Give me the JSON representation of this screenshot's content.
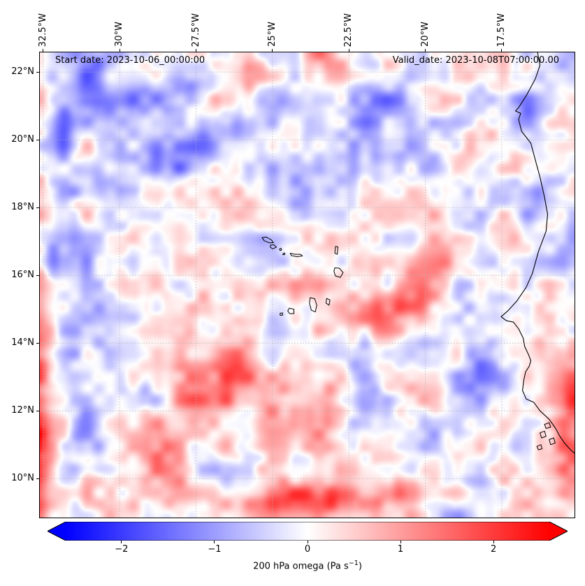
{
  "figure": {
    "start_date_label": "Start date: 2023-10-06_00:00:00",
    "valid_date_label": "Valid_date: 2023-10-08T07:00:00.00"
  },
  "chart_data": {
    "type": "heatmap",
    "variable": "200 hPa omega",
    "units": "Pa s-1",
    "lon_range": [
      -32.61,
      -15.12
    ],
    "lat_range": [
      8.85,
      22.58
    ],
    "x_ticks": [
      {
        "label": "32.5°W",
        "lon": -32.5
      },
      {
        "label": "30°W",
        "lon": -30
      },
      {
        "label": "27.5°W",
        "lon": -27.5
      },
      {
        "label": "25°W",
        "lon": -25
      },
      {
        "label": "22.5°W",
        "lon": -22.5
      },
      {
        "label": "20°W",
        "lon": -20
      },
      {
        "label": "17.5°W",
        "lon": -17.5
      }
    ],
    "y_ticks": [
      {
        "label": "22°N",
        "lat": 22
      },
      {
        "label": "20°N",
        "lat": 20
      },
      {
        "label": "18°N",
        "lat": 18
      },
      {
        "label": "16°N",
        "lat": 16
      },
      {
        "label": "14°N",
        "lat": 14
      },
      {
        "label": "12°N",
        "lat": 12
      },
      {
        "label": "10°N",
        "lat": 10
      }
    ],
    "grid": true,
    "grid_style": {
      "color": "#b5b5b5",
      "dash": "1.5 2.5"
    },
    "colormap": {
      "name": "bwr",
      "stops": [
        "#0000ff",
        "#ffffff",
        "#ff0000"
      ]
    },
    "colorbar": {
      "vmin": -2.6,
      "vmax": 2.6,
      "ticks": [
        {
          "v": -2,
          "label": "−2"
        },
        {
          "v": -1,
          "label": "−1"
        },
        {
          "v": 0,
          "label": "0"
        },
        {
          "v": 1,
          "label": "1"
        },
        {
          "v": 2,
          "label": "2"
        }
      ],
      "label_prefix": "200 hPa omega (Pa s",
      "label_sup": "−1",
      "label_suffix": ")",
      "extend": "both",
      "orientation": "horizontal"
    },
    "field": {
      "seed": 11,
      "octaves": [
        [
          5,
          0.4
        ],
        [
          11,
          0.45
        ],
        [
          23,
          0.5
        ],
        [
          46,
          0.35
        ]
      ],
      "gain": 1.25,
      "features": [
        [
          -32.8,
          16.0,
          1.3,
          0.35,
          6.5,
          0
        ],
        [
          -32.85,
          10.5,
          1.0,
          0.3,
          2.0,
          0
        ],
        [
          -31.3,
          12.0,
          -0.8,
          0.5,
          2.2,
          0
        ],
        [
          -29.5,
          21.2,
          -1.0,
          2.8,
          0.45,
          20
        ],
        [
          -28.0,
          19.6,
          -0.9,
          2.6,
          0.4,
          20
        ],
        [
          -31.5,
          21.9,
          -0.7,
          1.2,
          0.5,
          20
        ],
        [
          -31.2,
          18.1,
          0.9,
          0.55,
          0.4,
          0
        ],
        [
          -26.5,
          22.2,
          0.7,
          1.0,
          0.35,
          0
        ],
        [
          -21.5,
          20.8,
          -0.7,
          1.2,
          0.8,
          0
        ],
        [
          -19.2,
          18.6,
          -0.9,
          0.9,
          0.7,
          0
        ],
        [
          -16.3,
          19.6,
          -0.8,
          0.55,
          1.6,
          0
        ],
        [
          -19.0,
          19.2,
          0.8,
          1.2,
          0.35,
          45
        ],
        [
          -20.6,
          15.3,
          1.2,
          1.0,
          0.5,
          10
        ],
        [
          -19.3,
          16.4,
          1.0,
          0.7,
          0.4,
          0
        ],
        [
          -21.9,
          14.6,
          0.9,
          0.6,
          0.4,
          0
        ],
        [
          -27.6,
          12.4,
          1.1,
          0.5,
          0.8,
          0
        ],
        [
          -26.3,
          13.4,
          1.0,
          0.45,
          0.6,
          0
        ],
        [
          -25.0,
          11.6,
          0.9,
          0.5,
          0.55,
          0
        ],
        [
          -28.6,
          10.8,
          0.8,
          0.45,
          0.7,
          0
        ],
        [
          -23.3,
          12.2,
          0.85,
          0.45,
          0.5,
          0
        ],
        [
          -24.0,
          9.35,
          1.2,
          2.2,
          0.3,
          0
        ],
        [
          -20.0,
          9.6,
          0.7,
          1.0,
          0.3,
          0
        ],
        [
          -15.3,
          11.0,
          0.9,
          0.4,
          2.0,
          0
        ],
        [
          -15.5,
          15.5,
          -0.6,
          0.5,
          1.2,
          0
        ],
        [
          -22.0,
          12.0,
          -0.8,
          0.5,
          0.9,
          0
        ],
        [
          -18.0,
          13.0,
          -0.7,
          0.8,
          0.6,
          0
        ],
        [
          -24.6,
          16.6,
          -0.9,
          0.8,
          0.5,
          0
        ],
        [
          -30.0,
          14.8,
          -0.6,
          1.2,
          0.8,
          0
        ]
      ]
    },
    "coastline": [
      [
        -16.33,
        22.58
      ],
      [
        -16.25,
        22.2
      ],
      [
        -16.4,
        21.8
      ],
      [
        -16.7,
        21.3
      ],
      [
        -16.95,
        20.95
      ],
      [
        -17.05,
        20.85
      ],
      [
        -16.88,
        20.78
      ],
      [
        -16.95,
        20.6
      ],
      [
        -16.85,
        20.25
      ],
      [
        -16.55,
        19.9
      ],
      [
        -16.4,
        19.4
      ],
      [
        -16.25,
        18.9
      ],
      [
        -16.1,
        18.3
      ],
      [
        -16.0,
        17.8
      ],
      [
        -16.05,
        17.3
      ],
      [
        -16.3,
        16.7
      ],
      [
        -16.5,
        16.05
      ],
      [
        -16.7,
        15.65
      ],
      [
        -17.0,
        15.25
      ],
      [
        -17.3,
        14.95
      ],
      [
        -17.52,
        14.78
      ],
      [
        -17.35,
        14.66
      ],
      [
        -17.12,
        14.62
      ],
      [
        -16.95,
        14.42
      ],
      [
        -16.8,
        14.15
      ],
      [
        -16.75,
        13.9
      ],
      [
        -16.62,
        13.65
      ],
      [
        -16.55,
        13.48
      ],
      [
        -16.6,
        13.32
      ],
      [
        -16.72,
        13.15
      ],
      [
        -16.78,
        12.9
      ],
      [
        -16.82,
        12.6
      ],
      [
        -16.7,
        12.35
      ],
      [
        -16.45,
        12.25
      ],
      [
        -16.25,
        12.0
      ],
      [
        -15.95,
        11.75
      ],
      [
        -15.75,
        11.5
      ],
      [
        -15.6,
        11.25
      ],
      [
        -15.45,
        11.05
      ],
      [
        -15.25,
        10.85
      ],
      [
        -15.05,
        10.7
      ]
    ],
    "islands": [
      [
        [
          -25.34,
          17.11
        ],
        [
          -25.2,
          17.13
        ],
        [
          -25.03,
          17.04
        ],
        [
          -24.97,
          16.96
        ],
        [
          -25.1,
          16.96
        ],
        [
          -25.27,
          17.02
        ]
      ],
      [
        [
          -25.07,
          16.89
        ],
        [
          -24.95,
          16.9
        ],
        [
          -24.87,
          16.83
        ],
        [
          -25.0,
          16.78
        ],
        [
          -25.07,
          16.83
        ]
      ],
      [
        [
          -24.77,
          16.78
        ],
        [
          -24.72,
          16.8
        ],
        [
          -24.7,
          16.75
        ],
        [
          -24.75,
          16.73
        ]
      ],
      [
        [
          -24.65,
          16.65
        ],
        [
          -24.6,
          16.66
        ],
        [
          -24.6,
          16.61
        ],
        [
          -24.66,
          16.61
        ]
      ],
      [
        [
          -24.42,
          16.65
        ],
        [
          -24.26,
          16.62
        ],
        [
          -24.08,
          16.62
        ],
        [
          -24.02,
          16.57
        ],
        [
          -24.2,
          16.55
        ],
        [
          -24.38,
          16.58
        ]
      ],
      [
        [
          -22.94,
          16.85
        ],
        [
          -22.86,
          16.84
        ],
        [
          -22.88,
          16.62
        ],
        [
          -22.96,
          16.65
        ]
      ],
      [
        [
          -22.96,
          16.22
        ],
        [
          -22.81,
          16.21
        ],
        [
          -22.69,
          16.08
        ],
        [
          -22.78,
          15.94
        ],
        [
          -22.94,
          15.98
        ],
        [
          -22.99,
          16.12
        ]
      ],
      [
        [
          -23.23,
          15.32
        ],
        [
          -23.12,
          15.27
        ],
        [
          -23.15,
          15.12
        ],
        [
          -23.25,
          15.18
        ]
      ],
      [
        [
          -23.77,
          15.34
        ],
        [
          -23.62,
          15.31
        ],
        [
          -23.55,
          15.12
        ],
        [
          -23.6,
          14.92
        ],
        [
          -23.73,
          14.97
        ],
        [
          -23.79,
          15.18
        ]
      ],
      [
        [
          -24.45,
          15.03
        ],
        [
          -24.3,
          15.0
        ],
        [
          -24.3,
          14.87
        ],
        [
          -24.44,
          14.87
        ],
        [
          -24.5,
          14.95
        ]
      ],
      [
        [
          -24.75,
          14.88
        ],
        [
          -24.67,
          14.89
        ],
        [
          -24.67,
          14.82
        ],
        [
          -24.75,
          14.82
        ]
      ],
      [
        [
          -16.1,
          11.6
        ],
        [
          -15.95,
          11.65
        ],
        [
          -15.9,
          11.52
        ],
        [
          -16.05,
          11.48
        ]
      ],
      [
        [
          -16.25,
          11.35
        ],
        [
          -16.1,
          11.4
        ],
        [
          -16.05,
          11.25
        ],
        [
          -16.2,
          11.2
        ]
      ],
      [
        [
          -15.95,
          11.15
        ],
        [
          -15.8,
          11.2
        ],
        [
          -15.75,
          11.05
        ],
        [
          -15.9,
          11.0
        ]
      ],
      [
        [
          -16.35,
          10.95
        ],
        [
          -16.22,
          11.0
        ],
        [
          -16.18,
          10.88
        ],
        [
          -16.3,
          10.85
        ]
      ]
    ]
  }
}
